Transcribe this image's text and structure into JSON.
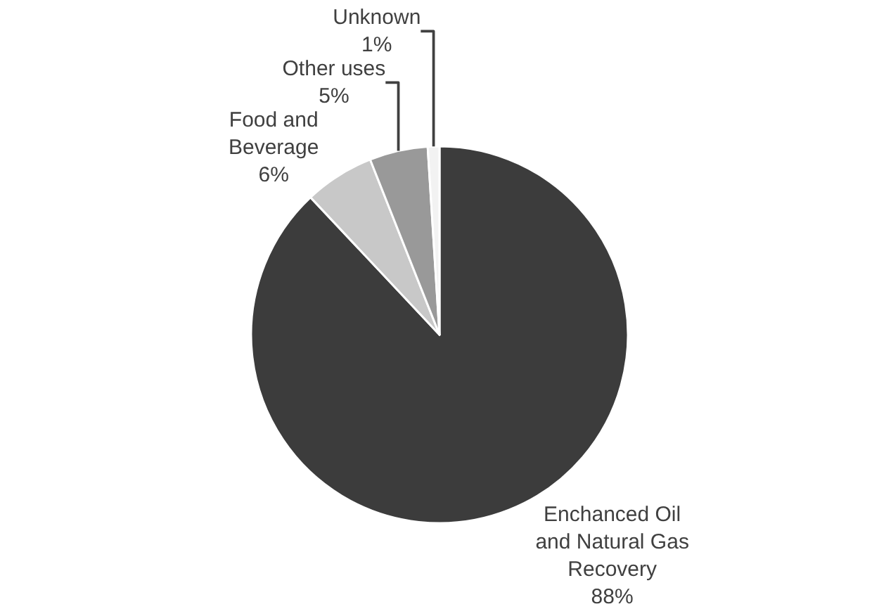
{
  "chart_data": {
    "type": "pie",
    "categories": [
      "Enchanced Oil and Natural Gas Recovery",
      "Food and Beverage",
      "Other uses",
      "Unknown"
    ],
    "values": [
      88,
      6,
      5,
      1
    ],
    "colors": [
      "#3c3c3c",
      "#c8c8c8",
      "#999999",
      "#f2f2f2"
    ],
    "value_labels": [
      "88%",
      "6%",
      "5%",
      "1%"
    ],
    "legend": false
  }
}
